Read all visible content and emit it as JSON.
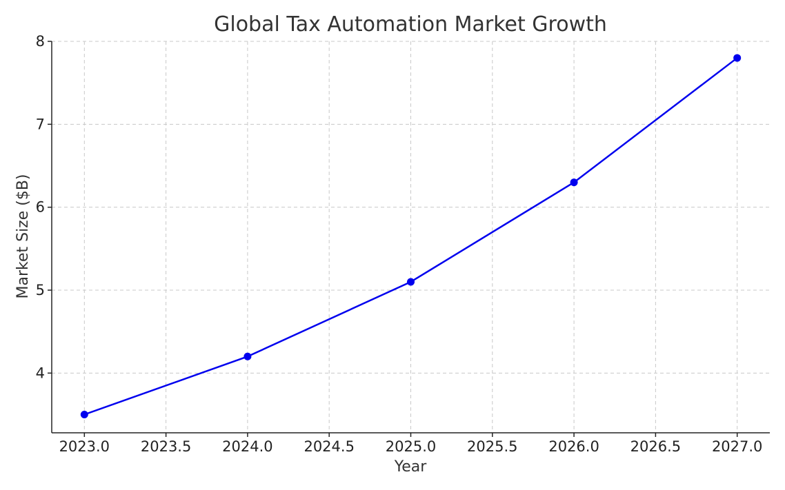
{
  "chart_data": {
    "type": "line",
    "title": "Global Tax Automation Market Growth",
    "xlabel": "Year",
    "ylabel": "Market Size ($B)",
    "x": [
      2023,
      2024,
      2025,
      2026,
      2027
    ],
    "series": [
      {
        "values": [
          3.5,
          4.2,
          5.1,
          6.3,
          7.8
        ],
        "color": "#0000ee",
        "marker": "circle"
      }
    ],
    "xlim": [
      2022.8,
      2027.2
    ],
    "ylim": [
      3.28,
      8.0
    ],
    "x_ticks": [
      2023.0,
      2023.5,
      2024.0,
      2024.5,
      2025.0,
      2025.5,
      2026.0,
      2026.5,
      2027.0
    ],
    "x_tick_labels": [
      "2023.0",
      "2023.5",
      "2024.0",
      "2024.5",
      "2025.0",
      "2025.5",
      "2026.0",
      "2026.5",
      "2027.0"
    ],
    "y_ticks": [
      4,
      5,
      6,
      7,
      8
    ],
    "y_tick_labels": [
      "4",
      "5",
      "6",
      "7",
      "8"
    ],
    "grid": true,
    "grid_color": "#c8c8c8",
    "axis_color": "#222222",
    "title_color": "#333333"
  }
}
